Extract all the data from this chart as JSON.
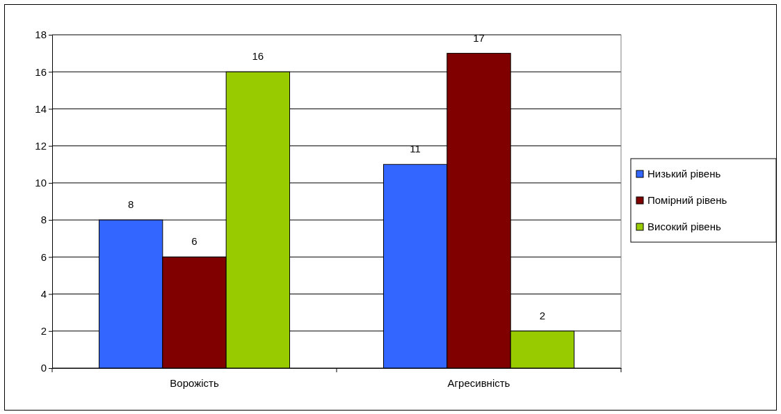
{
  "chart_data": {
    "type": "bar",
    "categories": [
      "Ворожість",
      "Агресивність"
    ],
    "series": [
      {
        "name": "Низький рівень",
        "color": "#3366ff",
        "values": [
          8,
          11
        ]
      },
      {
        "name": "Помірний рівень",
        "color": "#800000",
        "values": [
          6,
          17
        ]
      },
      {
        "name": "Високий рівень",
        "color": "#99cc00",
        "values": [
          16,
          2
        ]
      }
    ],
    "ylim": [
      0,
      18
    ],
    "yticks": [
      0,
      2,
      4,
      6,
      8,
      10,
      12,
      14,
      16,
      18
    ],
    "grid": "y",
    "legend": "right",
    "data_labels": true
  }
}
